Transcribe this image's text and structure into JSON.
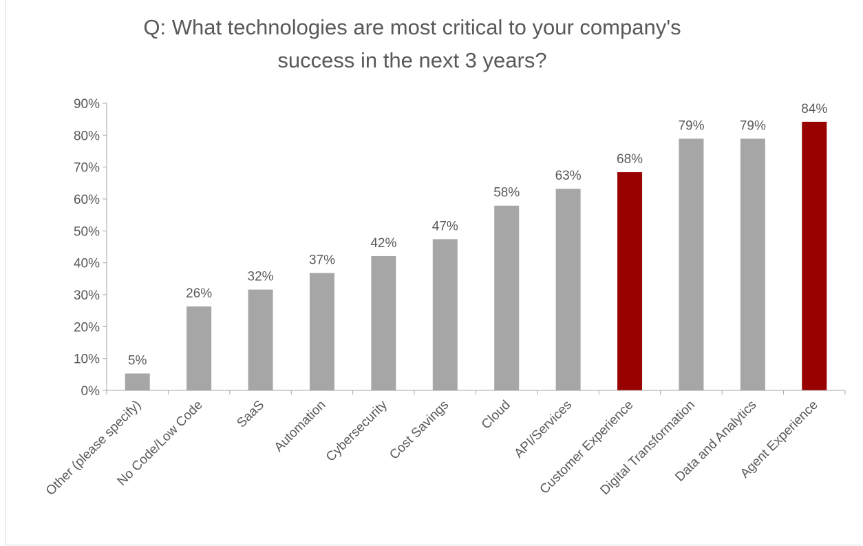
{
  "chart_data": {
    "type": "bar",
    "title": "Q: What technologies are most critical to your company's\nsuccess in the next 3 years?",
    "xlabel": "",
    "ylabel": "",
    "categories": [
      "Other (please specify)",
      "No Code/Low Code",
      "SaaS",
      "Automation",
      "Cybersecurity",
      "Cost Savings",
      "Cloud",
      "API/Services",
      "Customer Experience",
      "Digital Transformation",
      "Data and Analytics",
      "Agent Experience"
    ],
    "values": [
      5.3,
      26.3,
      31.6,
      36.8,
      42.1,
      47.4,
      57.9,
      63.2,
      68.4,
      78.9,
      78.9,
      84.2
    ],
    "data_labels": [
      "5%",
      "26%",
      "32%",
      "37%",
      "42%",
      "47%",
      "58%",
      "63%",
      "68%",
      "79%",
      "79%",
      "84%"
    ],
    "highlighted": [
      false,
      false,
      false,
      false,
      false,
      false,
      false,
      false,
      true,
      false,
      false,
      true
    ],
    "y_tick_values": [
      0,
      10,
      20,
      30,
      40,
      50,
      60,
      70,
      80,
      90
    ],
    "y_tick_labels": [
      "0%",
      "10%",
      "20%",
      "30%",
      "40%",
      "50%",
      "60%",
      "70%",
      "80%",
      "90%"
    ],
    "ylim": [
      0,
      90
    ],
    "grid": false,
    "legend": "none",
    "colors": {
      "default_bar": "#a6a6a6",
      "highlight_bar": "#990000",
      "axis": "#a6a6a6",
      "text": "#595959"
    }
  }
}
